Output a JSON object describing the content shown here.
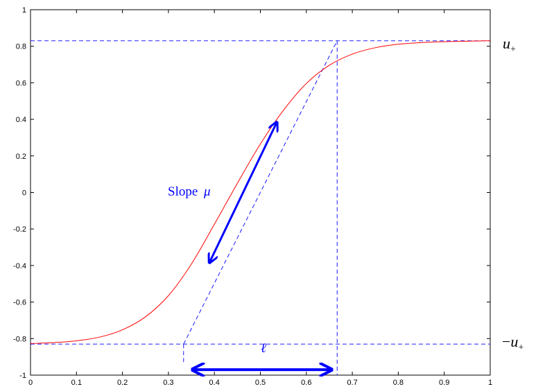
{
  "chart_data": {
    "type": "line",
    "title": "",
    "xlabel": "",
    "ylabel": "",
    "xlim": [
      0,
      1
    ],
    "ylim": [
      -1,
      1
    ],
    "x_ticks": [
      "0",
      "0.1",
      "0.2",
      "0.3",
      "0.4",
      "0.5",
      "0.6",
      "0.7",
      "0.8",
      "0.9",
      "1"
    ],
    "y_ticks": [
      "1",
      "0.8",
      "0.6",
      "0.4",
      "0.2",
      "0",
      "-0.2",
      "-0.4",
      "-0.6",
      "-0.8",
      "-1"
    ],
    "grid": false,
    "series": [
      {
        "color": "#ff0000",
        "style": "solid",
        "x": [
          0,
          0.05,
          0.1,
          0.15,
          0.2,
          0.25,
          0.3,
          0.35,
          0.4,
          0.45,
          0.5,
          0.55,
          0.6,
          0.65,
          0.7,
          0.75,
          0.8,
          0.85,
          0.9,
          0.95,
          1
        ],
        "y": [
          -0.827,
          -0.822,
          -0.812,
          -0.792,
          -0.752,
          -0.681,
          -0.565,
          -0.392,
          -0.174,
          0.05,
          0.265,
          0.449,
          0.596,
          0.696,
          0.757,
          0.792,
          0.811,
          0.82,
          0.825,
          0.828,
          0.83
        ]
      }
    ],
    "reference_lines": {
      "color": "#0000ff",
      "style": "dashed",
      "upper_level": 0.83,
      "lower_level": -0.83,
      "tangent_from": [
        0.333,
        -0.83
      ],
      "tangent_to": [
        0.667,
        0.83
      ],
      "left_vertical_x": 0.333,
      "right_vertical_x": 0.667,
      "vertical_bottom_y": -0.93
    },
    "annotations": {
      "color": "#0000ff",
      "slope_label": "Slope",
      "slope_symbol": "μ",
      "slope_arrow": {
        "from": [
          0.39,
          -0.38
        ],
        "to": [
          0.535,
          0.38
        ]
      },
      "width_label": "ℓ",
      "width_arrow": {
        "from": [
          0.355,
          -0.97
        ],
        "to": [
          0.652,
          -0.97
        ]
      },
      "upper_label": "u",
      "upper_sub": "+",
      "lower_prefix": "−",
      "lower_label": "u",
      "lower_sub": "+"
    }
  }
}
